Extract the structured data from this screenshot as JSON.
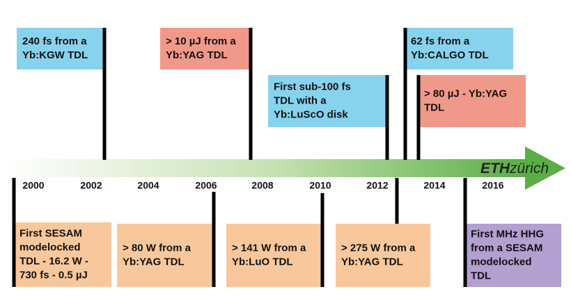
{
  "years": [
    "2000",
    "2002",
    "2004",
    "2006",
    "2008",
    "2010",
    "2012",
    "2014",
    "2016"
  ],
  "logo": {
    "bold": "ETH",
    "light": "zürich"
  },
  "top_events": [
    {
      "lines": [
        "240 fs from a",
        "Yb:KGW TDL"
      ]
    },
    {
      "lines": [
        "> 10 µJ from a",
        "Yb:YAG TDL"
      ]
    },
    {
      "lines": [
        "First sub-100 fs",
        "TDL with a",
        "Yb:LuScO disk"
      ]
    },
    {
      "lines": [
        "62 fs from a",
        "Yb:CALGO TDL"
      ]
    },
    {
      "lines": [
        "> 80 µJ - Yb:YAG",
        "TDL"
      ]
    }
  ],
  "bottom_events": [
    {
      "lines": [
        "First SESAM",
        "modelocked",
        "TDL - 16.2 W -",
        "730 fs - 0.5 µJ"
      ]
    },
    {
      "lines": [
        "> 80 W from a",
        "Yb:YAG TDL"
      ]
    },
    {
      "lines": [
        "> 141 W from a",
        "Yb:LuO TDL"
      ]
    },
    {
      "lines": [
        "> 275 W from a",
        "Yb:YAG TDL"
      ]
    },
    {
      "lines": [
        "First MHz HHG",
        "from a SESAM",
        "modelocked",
        "TDL"
      ]
    }
  ]
}
